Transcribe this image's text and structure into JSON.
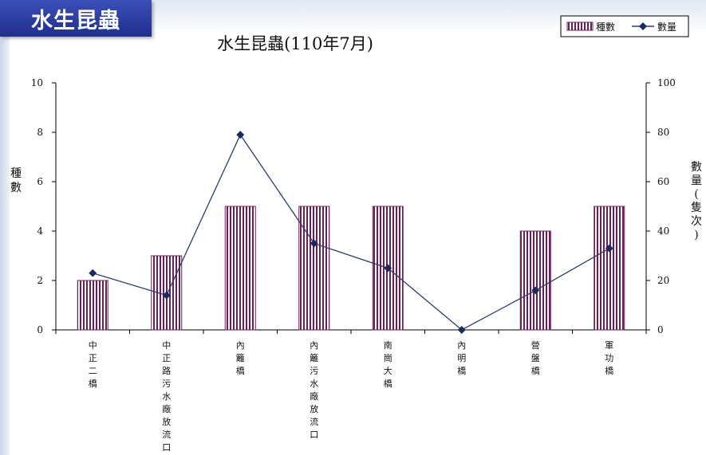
{
  "slide_title": "水生昆蟲",
  "chart_data": {
    "type": "bar",
    "title": "水生昆蟲(110年7月)",
    "categories": [
      "中正二橋",
      "中正路污水廠放流口",
      "內籬橋",
      "內籬污水廠放流口",
      "南崗大橋",
      "內明橋",
      "營盤橋",
      "軍功橋"
    ],
    "series": [
      {
        "name": "種數",
        "type": "bar",
        "axis": "left",
        "values": [
          2,
          3,
          5,
          5,
          5,
          0,
          4,
          5
        ]
      },
      {
        "name": "數量",
        "type": "line",
        "axis": "right",
        "values": [
          23,
          14,
          79,
          35,
          25,
          0,
          16,
          33
        ]
      }
    ],
    "ylabel_left": "種數",
    "ylabel_right": "數量(隻次)",
    "ylim_left": [
      0,
      10
    ],
    "ylim_right": [
      0,
      100
    ],
    "yticks_left": [
      "0",
      "2",
      "4",
      "6",
      "8",
      "10"
    ],
    "yticks_right": [
      "0",
      "20",
      "40",
      "60",
      "80",
      "100"
    ],
    "grid": false,
    "legend_position": "top-right",
    "colors": {
      "bar_stripe": "#6b1f5a",
      "line": "#2c3e66",
      "marker": "#1a2a5e",
      "banner": "#2a3da0"
    }
  }
}
